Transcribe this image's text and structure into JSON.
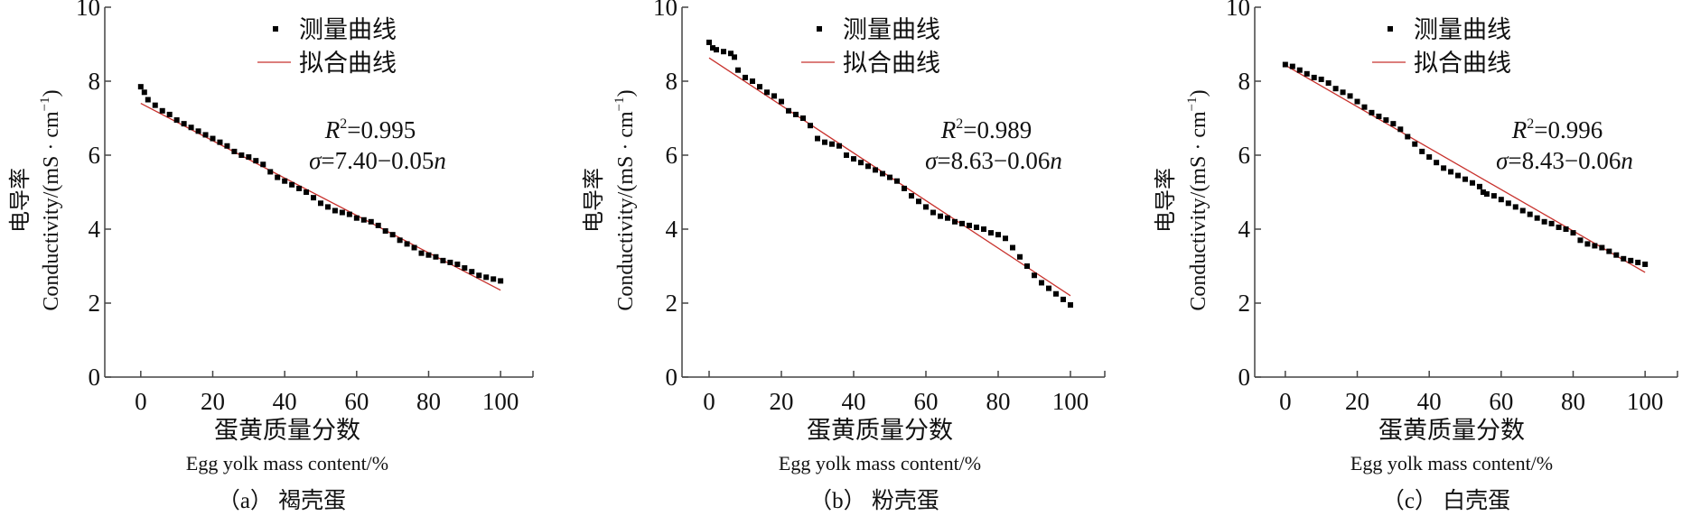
{
  "legend": {
    "measured": "测量曲线",
    "fitted": "拟合曲线"
  },
  "colors": {
    "measured": "#000000",
    "fitted": "#c8322d",
    "axis": "#444444"
  },
  "chart_data": [
    {
      "type": "scatter",
      "caption": "（a） 褐壳蛋",
      "xlabel_zh": "蛋黄质量分数",
      "xlabel_en": "Egg yolk mass content/%",
      "ylabel": {
        "zh": "电导率",
        "en": "Conductivity/(mS · cm",
        "exp": "−1",
        "close": ")"
      },
      "xlim": [
        -10,
        109
      ],
      "ylim": [
        0,
        10
      ],
      "xticks": [
        "0",
        "20",
        "40",
        "60",
        "80",
        "100"
      ],
      "yticks": [
        "0",
        "2",
        "4",
        "6",
        "8",
        "10"
      ],
      "annotation": {
        "r_symbol": "R",
        "r_exp": "2",
        "r_value": "=0.995",
        "sigma": "σ",
        "equation": "=7.40−0.05",
        "var": "n"
      },
      "fit": {
        "x": [
          0,
          100
        ],
        "y": [
          7.4,
          2.35
        ]
      },
      "measured": {
        "x": [
          0,
          1,
          2,
          4,
          6,
          8,
          10,
          12,
          14,
          16,
          18,
          20,
          22,
          24,
          26,
          28,
          30,
          32,
          34,
          36,
          38,
          40,
          42,
          44,
          46,
          48,
          50,
          52,
          54,
          56,
          58,
          60,
          62,
          64,
          66,
          68,
          70,
          72,
          74,
          76,
          78,
          80,
          82,
          84,
          86,
          88,
          90,
          92,
          94,
          96,
          98,
          100
        ],
        "y": [
          7.85,
          7.7,
          7.5,
          7.35,
          7.2,
          7.1,
          6.95,
          6.85,
          6.75,
          6.65,
          6.55,
          6.45,
          6.35,
          6.25,
          6.1,
          6.0,
          5.95,
          5.85,
          5.75,
          5.55,
          5.4,
          5.3,
          5.2,
          5.1,
          5.0,
          4.85,
          4.7,
          4.6,
          4.5,
          4.45,
          4.4,
          4.3,
          4.25,
          4.2,
          4.1,
          3.95,
          3.85,
          3.7,
          3.6,
          3.5,
          3.35,
          3.3,
          3.25,
          3.15,
          3.1,
          3.05,
          2.95,
          2.85,
          2.75,
          2.7,
          2.65,
          2.6
        ]
      }
    },
    {
      "type": "scatter",
      "caption": "（b） 粉壳蛋",
      "xlabel_zh": "蛋黄质量分数",
      "xlabel_en": "Egg yolk mass content/%",
      "ylabel": {
        "zh": "电导率",
        "en": "Conductivity/(mS · cm",
        "exp": "−1",
        "close": ")"
      },
      "xlim": [
        -7.5,
        109.5
      ],
      "ylim": [
        0,
        10
      ],
      "xticks": [
        "0",
        "20",
        "40",
        "60",
        "80",
        "100"
      ],
      "yticks": [
        "0",
        "2",
        "4",
        "6",
        "8",
        "10"
      ],
      "annotation": {
        "r_symbol": "R",
        "r_exp": "2",
        "r_value": "=0.989",
        "sigma": "σ",
        "equation": "=8.63−0.06",
        "var": "n"
      },
      "fit": {
        "x": [
          0,
          100
        ],
        "y": [
          8.63,
          2.2
        ]
      },
      "measured": {
        "x": [
          0,
          1,
          2,
          4,
          6,
          7,
          8,
          10,
          12,
          14,
          16,
          18,
          20,
          22,
          24,
          26,
          28,
          30,
          32,
          34,
          36,
          38,
          40,
          42,
          44,
          46,
          48,
          50,
          52,
          54,
          56,
          58,
          60,
          62,
          64,
          66,
          68,
          70,
          72,
          74,
          76,
          78,
          80,
          82,
          84,
          86,
          88,
          90,
          92,
          94,
          96,
          98,
          100
        ],
        "y": [
          9.05,
          8.9,
          8.85,
          8.8,
          8.75,
          8.65,
          8.3,
          8.1,
          8.0,
          7.85,
          7.7,
          7.6,
          7.45,
          7.2,
          7.1,
          7.0,
          6.8,
          6.45,
          6.35,
          6.3,
          6.25,
          6.0,
          5.9,
          5.8,
          5.7,
          5.6,
          5.5,
          5.4,
          5.3,
          5.1,
          4.9,
          4.75,
          4.6,
          4.45,
          4.35,
          4.3,
          4.2,
          4.15,
          4.1,
          4.05,
          4.0,
          3.9,
          3.85,
          3.75,
          3.5,
          3.25,
          3.0,
          2.75,
          2.55,
          2.4,
          2.25,
          2.1,
          1.95
        ]
      }
    },
    {
      "type": "scatter",
      "caption": "（c） 白壳蛋",
      "xlabel_zh": "蛋黄质量分数",
      "xlabel_en": "Egg yolk mass content/%",
      "ylabel": {
        "zh": "电导率",
        "en": "Conductivity/(mS · cm",
        "exp": "−1",
        "close": ")"
      },
      "xlim": [
        -8.5,
        109
      ],
      "ylim": [
        0,
        10
      ],
      "xticks": [
        "0",
        "20",
        "40",
        "60",
        "80",
        "100"
      ],
      "yticks": [
        "0",
        "2",
        "4",
        "6",
        "8",
        "10"
      ],
      "annotation": {
        "r_symbol": "R",
        "r_exp": "2",
        "r_value": "=0.996",
        "sigma": "σ",
        "equation": "=8.43−0.06",
        "var": "n"
      },
      "fit": {
        "x": [
          0,
          100
        ],
        "y": [
          8.43,
          2.83
        ]
      },
      "measured": {
        "x": [
          0,
          2,
          4,
          6,
          8,
          10,
          12,
          14,
          16,
          18,
          20,
          22,
          24,
          26,
          28,
          30,
          32,
          34,
          36,
          38,
          40,
          42,
          44,
          46,
          48,
          50,
          52,
          54,
          55,
          56,
          58,
          60,
          62,
          64,
          66,
          68,
          70,
          72,
          74,
          76,
          78,
          80,
          82,
          84,
          86,
          88,
          90,
          92,
          94,
          96,
          98,
          100
        ],
        "y": [
          8.45,
          8.4,
          8.3,
          8.2,
          8.1,
          8.05,
          7.95,
          7.8,
          7.7,
          7.6,
          7.45,
          7.3,
          7.15,
          7.05,
          6.95,
          6.85,
          6.7,
          6.5,
          6.3,
          6.1,
          5.95,
          5.8,
          5.65,
          5.55,
          5.45,
          5.35,
          5.25,
          5.15,
          5.0,
          4.95,
          4.9,
          4.8,
          4.7,
          4.6,
          4.5,
          4.4,
          4.3,
          4.2,
          4.15,
          4.05,
          4.0,
          3.9,
          3.7,
          3.6,
          3.55,
          3.5,
          3.4,
          3.3,
          3.2,
          3.15,
          3.1,
          3.05
        ]
      }
    }
  ]
}
